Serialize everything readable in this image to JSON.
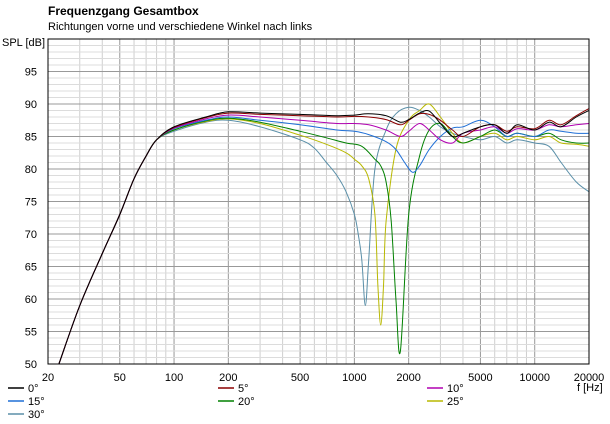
{
  "chart_data": {
    "type": "line",
    "title": "Frequenzgang Gesamtbox",
    "subtitle": "Richtungen vorne und verschiedene Winkel nach links",
    "ylabel": "SPL [dB]",
    "xlabel": "f [Hz]",
    "x_scale": "log",
    "xlim": [
      20,
      20000
    ],
    "ylim": [
      50,
      100
    ],
    "x_ticks": [
      20,
      50,
      100,
      200,
      500,
      1000,
      2000,
      5000,
      10000,
      20000
    ],
    "x_tick_labels": [
      "20",
      "50",
      "100",
      "200",
      "500",
      "1000",
      "2000",
      "5000",
      "10000",
      "20000"
    ],
    "y_ticks": [
      50,
      55,
      60,
      65,
      70,
      75,
      80,
      85,
      90,
      95
    ],
    "grid": true,
    "legend_position": "bottom",
    "series": [
      {
        "name": "0°",
        "color": "#000000",
        "x": [
          23,
          30,
          40,
          50,
          60,
          70,
          80,
          100,
          150,
          200,
          300,
          500,
          800,
          1000,
          1200,
          1500,
          1800,
          2000,
          2300,
          2600,
          3000,
          3500,
          4000,
          5000,
          6000,
          7000,
          8000,
          10000,
          12000,
          14000,
          17000,
          20000
        ],
        "y": [
          50,
          59,
          67,
          73,
          78.5,
          82,
          84.5,
          86.5,
          88,
          88.8,
          88.6,
          88.4,
          88.2,
          88.3,
          88.5,
          88.2,
          87.2,
          87.6,
          88.6,
          88.9,
          87,
          85,
          85.5,
          86.5,
          86.8,
          85.5,
          86.8,
          86,
          87.2,
          86.5,
          88,
          89
        ]
      },
      {
        "name": "5°",
        "color": "#8b0000",
        "x": [
          23,
          30,
          40,
          50,
          60,
          70,
          80,
          100,
          150,
          200,
          300,
          500,
          800,
          1000,
          1200,
          1500,
          1800,
          2000,
          2300,
          2600,
          3000,
          3500,
          4000,
          5000,
          6000,
          7000,
          8000,
          10000,
          12000,
          14000,
          17000,
          20000
        ],
        "y": [
          50,
          59,
          67,
          73,
          78.5,
          82,
          84.5,
          86.4,
          87.9,
          88.6,
          88.4,
          88.2,
          88,
          88.1,
          88,
          87.6,
          86.8,
          87.5,
          88.5,
          88.4,
          87.5,
          86,
          85,
          86.5,
          86.8,
          85.8,
          86.5,
          86.2,
          87.5,
          86.8,
          88.2,
          89.3
        ]
      },
      {
        "name": "10°",
        "color": "#b000b0",
        "x": [
          23,
          30,
          40,
          50,
          60,
          70,
          80,
          100,
          150,
          200,
          300,
          500,
          800,
          1000,
          1200,
          1500,
          1800,
          2000,
          2300,
          2600,
          3000,
          3500,
          4000,
          5000,
          6000,
          7000,
          8000,
          10000,
          12000,
          14000,
          17000,
          20000
        ],
        "y": [
          50,
          59,
          67,
          73,
          78.5,
          82,
          84.5,
          86.3,
          87.7,
          88.3,
          88,
          87.5,
          87,
          87,
          86.8,
          86,
          85,
          85.8,
          87,
          86,
          84.5,
          84,
          85.5,
          86,
          86.5,
          85.5,
          86.2,
          86,
          86.8,
          86.5,
          86.8,
          87
        ]
      },
      {
        "name": "15°",
        "color": "#1f6fd6",
        "x": [
          23,
          30,
          40,
          50,
          60,
          70,
          80,
          100,
          150,
          200,
          300,
          500,
          800,
          1000,
          1200,
          1500,
          1700,
          1900,
          2100,
          2300,
          2600,
          3000,
          3500,
          4000,
          5000,
          6000,
          7000,
          8000,
          10000,
          12000,
          14000,
          17000,
          20000
        ],
        "y": [
          50,
          59,
          67,
          73,
          78.5,
          82,
          84.5,
          86.2,
          87.5,
          88,
          87.5,
          86.8,
          86,
          85.8,
          85.3,
          84.2,
          83,
          81,
          79.5,
          80.5,
          83,
          85,
          86.3,
          86.5,
          87.5,
          86.5,
          85,
          85.5,
          85,
          86,
          85.8,
          85.5,
          85.5
        ]
      },
      {
        "name": "20°",
        "color": "#008000",
        "x": [
          23,
          30,
          40,
          50,
          60,
          70,
          80,
          100,
          150,
          200,
          300,
          500,
          700,
          900,
          1100,
          1300,
          1400,
          1500,
          1600,
          1700,
          1800,
          2000,
          2300,
          2600,
          3000,
          3500,
          4000,
          5000,
          6000,
          7000,
          8000,
          10000,
          12000,
          14000,
          17000,
          20000
        ],
        "y": [
          50,
          59,
          67,
          73,
          78.5,
          82,
          84.5,
          86,
          87.4,
          87.8,
          87.2,
          85.8,
          84.8,
          84,
          83.5,
          81.5,
          80.5,
          78,
          72,
          60,
          52,
          73,
          82,
          86,
          87,
          85,
          84,
          85,
          86,
          85,
          85.5,
          85,
          85.5,
          84.5,
          84,
          84
        ]
      },
      {
        "name": "25°",
        "color": "#b8b800",
        "x": [
          23,
          30,
          40,
          50,
          60,
          70,
          80,
          100,
          150,
          200,
          300,
          500,
          700,
          900,
          1000,
          1100,
          1200,
          1300,
          1350,
          1400,
          1450,
          1500,
          1700,
          2000,
          2300,
          2600,
          3000,
          3500,
          4000,
          5000,
          6000,
          7000,
          8000,
          10000,
          12000,
          14000,
          17000,
          20000
        ],
        "y": [
          50,
          59,
          67,
          73,
          78.5,
          82,
          84.5,
          86,
          87.3,
          87.7,
          87,
          85.2,
          83.8,
          82.5,
          81.5,
          80.5,
          78.5,
          73,
          62,
          56,
          62,
          72,
          83,
          87.5,
          89,
          90,
          88,
          85.5,
          84,
          85,
          85.5,
          84.5,
          85,
          84.5,
          85,
          84,
          83.8,
          83.5
        ]
      },
      {
        "name": "30°",
        "color": "#5a8fa8",
        "x": [
          23,
          30,
          40,
          50,
          60,
          70,
          80,
          100,
          150,
          200,
          300,
          500,
          600,
          700,
          800,
          900,
          1000,
          1050,
          1100,
          1150,
          1200,
          1300,
          1500,
          1700,
          2000,
          2300,
          2600,
          3000,
          3500,
          4000,
          5000,
          6000,
          7000,
          8000,
          10000,
          12000,
          14000,
          17000,
          20000
        ],
        "y": [
          50,
          59,
          67,
          73,
          78.5,
          82,
          84.5,
          85.8,
          87.2,
          87.5,
          86.5,
          84.5,
          83.2,
          81,
          79,
          76.5,
          73,
          70,
          66,
          59,
          66,
          80,
          86,
          88.5,
          89.5,
          89,
          88,
          86.5,
          85.5,
          85,
          84.5,
          85,
          84,
          84.5,
          84,
          83.5,
          81,
          78,
          76.5
        ]
      }
    ]
  }
}
